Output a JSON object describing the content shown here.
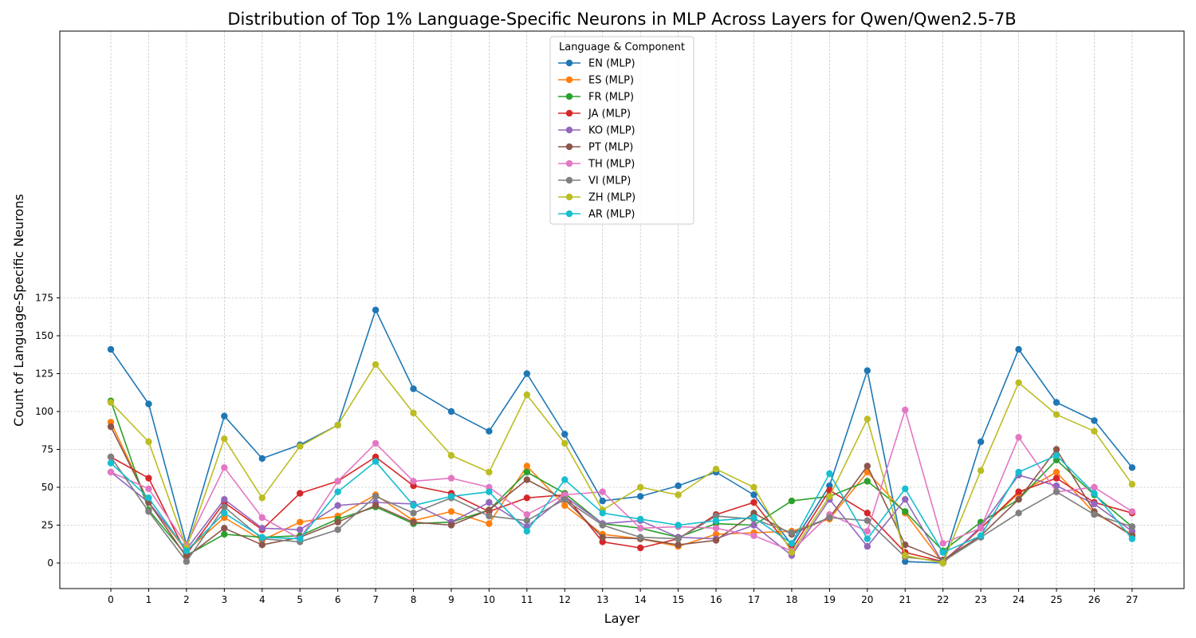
{
  "chart_data": {
    "type": "line",
    "title": "Distribution of Top 1% Language-Specific Neurons in MLP Across Layers for Qwen/Qwen2.5-7B",
    "xlabel": "Layer",
    "ylabel": "Count of Language-Specific Neurons",
    "x": [
      0,
      1,
      2,
      3,
      4,
      5,
      6,
      7,
      8,
      9,
      10,
      11,
      12,
      13,
      14,
      15,
      16,
      17,
      18,
      19,
      20,
      21,
      22,
      23,
      24,
      25,
      26,
      27
    ],
    "ylim": [
      -8,
      176
    ],
    "yticks": [
      0,
      25,
      50,
      75,
      100,
      125,
      150,
      175
    ],
    "grid": true,
    "legend_title": "Language & Component",
    "legend_position": "top-center",
    "series": [
      {
        "name": "EN (MLP)",
        "color": "#1f77b4",
        "values": [
          141,
          105,
          12,
          97,
          69,
          78,
          91,
          167,
          115,
          100,
          87,
          125,
          85,
          41,
          44,
          51,
          60,
          45,
          12,
          51,
          127,
          1,
          0,
          80,
          141,
          106,
          94,
          63
        ]
      },
      {
        "name": "ES (MLP)",
        "color": "#ff7f0e",
        "values": [
          93,
          40,
          8,
          30,
          15,
          27,
          31,
          45,
          28,
          34,
          26,
          64,
          38,
          19,
          16,
          11,
          19,
          20,
          21,
          29,
          60,
          33,
          0,
          23,
          46,
          60,
          33,
          19
        ]
      },
      {
        "name": "FR (MLP)",
        "color": "#2ca02c",
        "values": [
          107,
          35,
          5,
          19,
          17,
          18,
          29,
          37,
          26,
          27,
          35,
          60,
          46,
          26,
          23,
          17,
          26,
          25,
          41,
          44,
          54,
          34,
          8,
          27,
          42,
          68,
          45,
          24
        ]
      },
      {
        "name": "JA (MLP)",
        "color": "#d62728",
        "values": [
          70,
          56,
          6,
          40,
          22,
          46,
          54,
          70,
          51,
          46,
          34,
          43,
          45,
          14,
          10,
          16,
          32,
          40,
          9,
          48,
          33,
          7,
          1,
          23,
          47,
          56,
          40,
          33
        ]
      },
      {
        "name": "KO (MLP)",
        "color": "#9467bd",
        "values": [
          60,
          40,
          9,
          42,
          23,
          22,
          38,
          40,
          39,
          27,
          40,
          24,
          44,
          26,
          28,
          17,
          16,
          25,
          5,
          42,
          11,
          42,
          0,
          24,
          58,
          51,
          39,
          21
        ]
      },
      {
        "name": "PT (MLP)",
        "color": "#8c564b",
        "values": [
          90,
          40,
          4,
          23,
          12,
          17,
          27,
          38,
          27,
          25,
          35,
          55,
          42,
          17,
          16,
          12,
          15,
          33,
          19,
          30,
          64,
          12,
          2,
          18,
          42,
          75,
          34,
          18
        ]
      },
      {
        "name": "TH (MLP)",
        "color": "#e377c2",
        "values": [
          60,
          49,
          12,
          63,
          30,
          16,
          54,
          79,
          54,
          56,
          50,
          32,
          45,
          47,
          23,
          24,
          23,
          18,
          8,
          32,
          21,
          101,
          13,
          23,
          83,
          47,
          50,
          34
        ]
      },
      {
        "name": "VI (MLP)",
        "color": "#7f7f7f",
        "values": [
          70,
          34,
          1,
          37,
          16,
          14,
          22,
          44,
          33,
          43,
          31,
          28,
          42,
          25,
          17,
          16,
          31,
          29,
          20,
          30,
          28,
          4,
          1,
          17,
          33,
          47,
          32,
          24
        ]
      },
      {
        "name": "ZH (MLP)",
        "color": "#bcbd22",
        "values": [
          106,
          80,
          10,
          82,
          43,
          77,
          91,
          131,
          99,
          71,
          60,
          111,
          79,
          35,
          50,
          45,
          62,
          50,
          7,
          44,
          95,
          5,
          0,
          61,
          119,
          98,
          87,
          52
        ]
      },
      {
        "name": "AR (MLP)",
        "color": "#17becf",
        "values": [
          66,
          43,
          8,
          33,
          17,
          16,
          47,
          67,
          38,
          44,
          47,
          21,
          55,
          33,
          29,
          25,
          28,
          30,
          13,
          59,
          16,
          49,
          7,
          18,
          60,
          71,
          46,
          16
        ]
      }
    ]
  }
}
